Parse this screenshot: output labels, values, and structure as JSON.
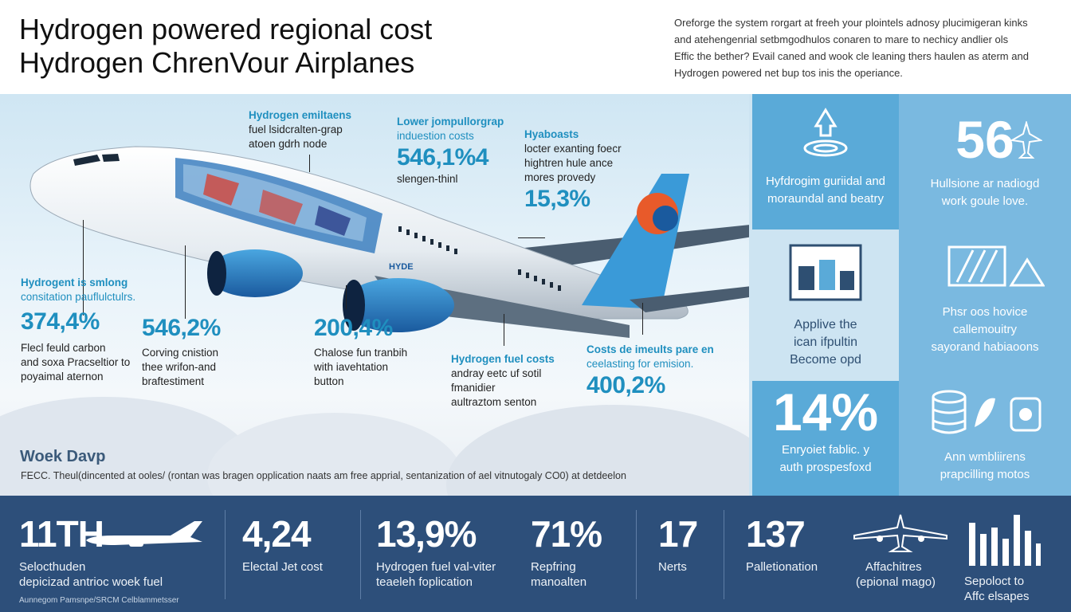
{
  "header": {
    "title_line1": "Hydrogen powered regional cost",
    "title_line2": "Hydrogen ChrenVour Airplanes",
    "intro_lines": [
      "Oreforge the system rorgart at freeh your plointels adnosy plucimigeran kinks",
      "and atehengenrial setbmgodhulos conaren to mare to nechicy andlier ols",
      "Effic the bether? Evail caned and wook cle leaning thers haulen as aterm and",
      "Hydrogen powered net bup tos inis the operiance."
    ]
  },
  "hero": {
    "callout_a": {
      "heading": "Hydrogen emiltaens",
      "line1": "fuel lsidcralten-grap",
      "line2": "atoen gdrh node"
    },
    "callout_b": {
      "heading": "Lower jompullorgrap",
      "line1": "induestion costs",
      "value": "546,1%4",
      "line2": "slengen-thinl"
    },
    "callout_c": {
      "heading": "Hyaboasts",
      "line1": "locter exanting foecr",
      "line2": "hightren hule ance",
      "line3": "mores provedy",
      "value": "15,3%"
    },
    "callout_d": {
      "heading": "Hydrogent is smlong",
      "line1": "consitation pauflulctulrs.",
      "value": "374,4%",
      "line2": "Flecl feuld carbon",
      "line3": "and soxa Pracseltior to",
      "line4": "poyaimal aternon"
    },
    "callout_e": {
      "value": "546,2%",
      "line1": "Corving cnistion",
      "line2": "thee wrifon-and",
      "line3": "braftestiment"
    },
    "callout_f": {
      "value": "200,4%",
      "line1": "Chalose fun tranbih",
      "line2": "with iavehtation",
      "line3": "button"
    },
    "callout_g": {
      "heading": "Hydrogen fuel costs",
      "line1": "andray eetc uf sotil",
      "line2": "fmanidier",
      "line3": "aultraztom senton"
    },
    "callout_h": {
      "heading": "Costs de imeults pare en",
      "line1": "ceelasting for emision.",
      "value": "400,2%"
    },
    "plane_text": "HYDE",
    "weekday": "Woek Davp",
    "footnote": "FECC. Theul(dincented at ooles/ (rontan was bragen opplication naats am free apprial, sentanization of ael vitnutogaly CO0) at detdeelon"
  },
  "right_panel": {
    "tile1": {
      "line1": "Hyfdrogim guriidal and",
      "line2": "moraundal and beatry"
    },
    "tile2": {
      "value": "56",
      "line1": "Hullsione ar nadiogd",
      "line2": "work goule love."
    },
    "tile3": {
      "line1": "Applive the",
      "line2": "ican ifpultin",
      "line3": "Become opd"
    },
    "tile4": {
      "line1": "Phsr oos hovice",
      "line2": "callemouitry",
      "line3": "sayorand habiaoons"
    },
    "tile5": {
      "value": "14%",
      "line1": "Enryoiet fablic. y",
      "line2": "auth prospesfoxd"
    },
    "tile6": {
      "line1": "Ann wmbliirens",
      "line2": "prapcilling motos"
    }
  },
  "band": {
    "stats": [
      {
        "num": "11TH",
        "lbl1": "Selocthuden",
        "lbl2": "depicizad antrioc woek fuel"
      },
      {
        "num": "4,24",
        "lbl1": "Electal Jet cost",
        "lbl2": ""
      },
      {
        "num": "13,9%",
        "lbl1": "Hydrogen fuel val-viter",
        "lbl2": "teaeleh foplication"
      },
      {
        "num": "71%",
        "lbl1": "Repfring",
        "lbl2": "manoalten"
      },
      {
        "num": "17",
        "lbl1": "Nerts",
        "lbl2": ""
      },
      {
        "num": "137",
        "lbl1": "Palletionation",
        "lbl2": ""
      },
      {
        "num": "",
        "lbl1": "Affachitres",
        "lbl2": "(epional mago)"
      },
      {
        "num": "",
        "lbl1": "Sepoloct to",
        "lbl2": "Affc elsapes"
      }
    ],
    "small_print": "Aunnegom Pamsnpe/SRCM Celblammetsser"
  },
  "colors": {
    "accent": "#1f8fbf",
    "band": "#2d4f7a",
    "tile_dark": "#5aaad8",
    "tile_mid": "#7ab9e0"
  }
}
